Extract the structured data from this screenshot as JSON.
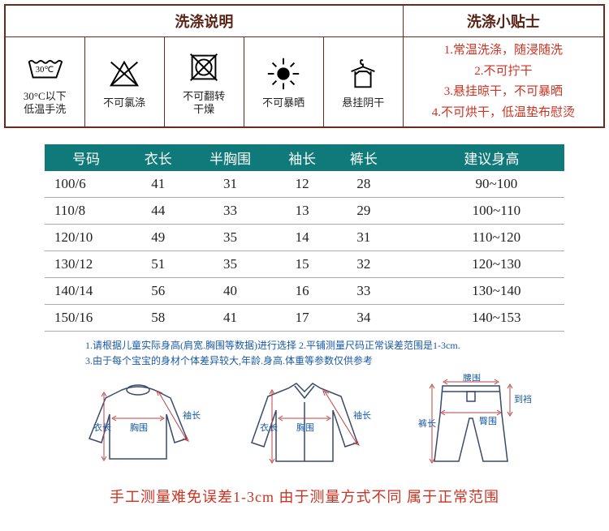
{
  "wash": {
    "title": "洗涤说明",
    "tips_title": "洗涤小贴士",
    "icons": [
      {
        "name": "wash-30c",
        "label": "30°C以下\n低温手洗"
      },
      {
        "name": "no-chlorine",
        "label": "不可氯涤"
      },
      {
        "name": "no-tumble",
        "label": "不可翻转\n干燥"
      },
      {
        "name": "no-sun",
        "label": "不可暴晒"
      },
      {
        "name": "hang-dry",
        "label": "悬挂阴干"
      }
    ],
    "tips": [
      "1.常温洗涤，随浸随洗",
      "2.不可拧干",
      "3.悬挂晾干，不可暴晒",
      "4.不可烘干，低温垫布慰烫"
    ]
  },
  "size_table": {
    "headers": [
      "号码",
      "衣长",
      "半胸围",
      "袖长",
      "裤长",
      "建议身高"
    ],
    "rows": [
      [
        "100/6",
        "41",
        "31",
        "12",
        "28",
        "90~100"
      ],
      [
        "110/8",
        "44",
        "33",
        "13",
        "29",
        "100~110"
      ],
      [
        "120/10",
        "49",
        "35",
        "14",
        "31",
        "110~120"
      ],
      [
        "130/12",
        "51",
        "35",
        "15",
        "32",
        "120~130"
      ],
      [
        "140/14",
        "56",
        "40",
        "16",
        "33",
        "130~140"
      ],
      [
        "150/16",
        "58",
        "41",
        "17",
        "34",
        "140~153"
      ]
    ]
  },
  "notes": {
    "line1": "1.请根据儿童实际身高(肩宽.胸围等数据)进行选择  2.平铺测量尺码正常误差范围是1-3cm.",
    "line2": "3.由于每个宝宝的身材个体差异较大,年龄.身高.体重等参数仅供参考"
  },
  "diagram_labels": {
    "yichang": "衣长",
    "xiongwei": "胸围",
    "xiuchang": "袖长",
    "yaowei": "腰围",
    "daodang": "到裆",
    "kuchang": "裤长",
    "tunwei": "臀围"
  },
  "footer": "手工测量难免误差1-3cm 由于测量方式不同 属于正常范围",
  "colors": {
    "border": "#6b2a1a",
    "tips_text": "#cc3322",
    "size_header_bg": "#107a7a",
    "notes_text": "#1a5aa8",
    "diag_line": "#3a4a6b",
    "diag_arrow": "#c04040"
  }
}
